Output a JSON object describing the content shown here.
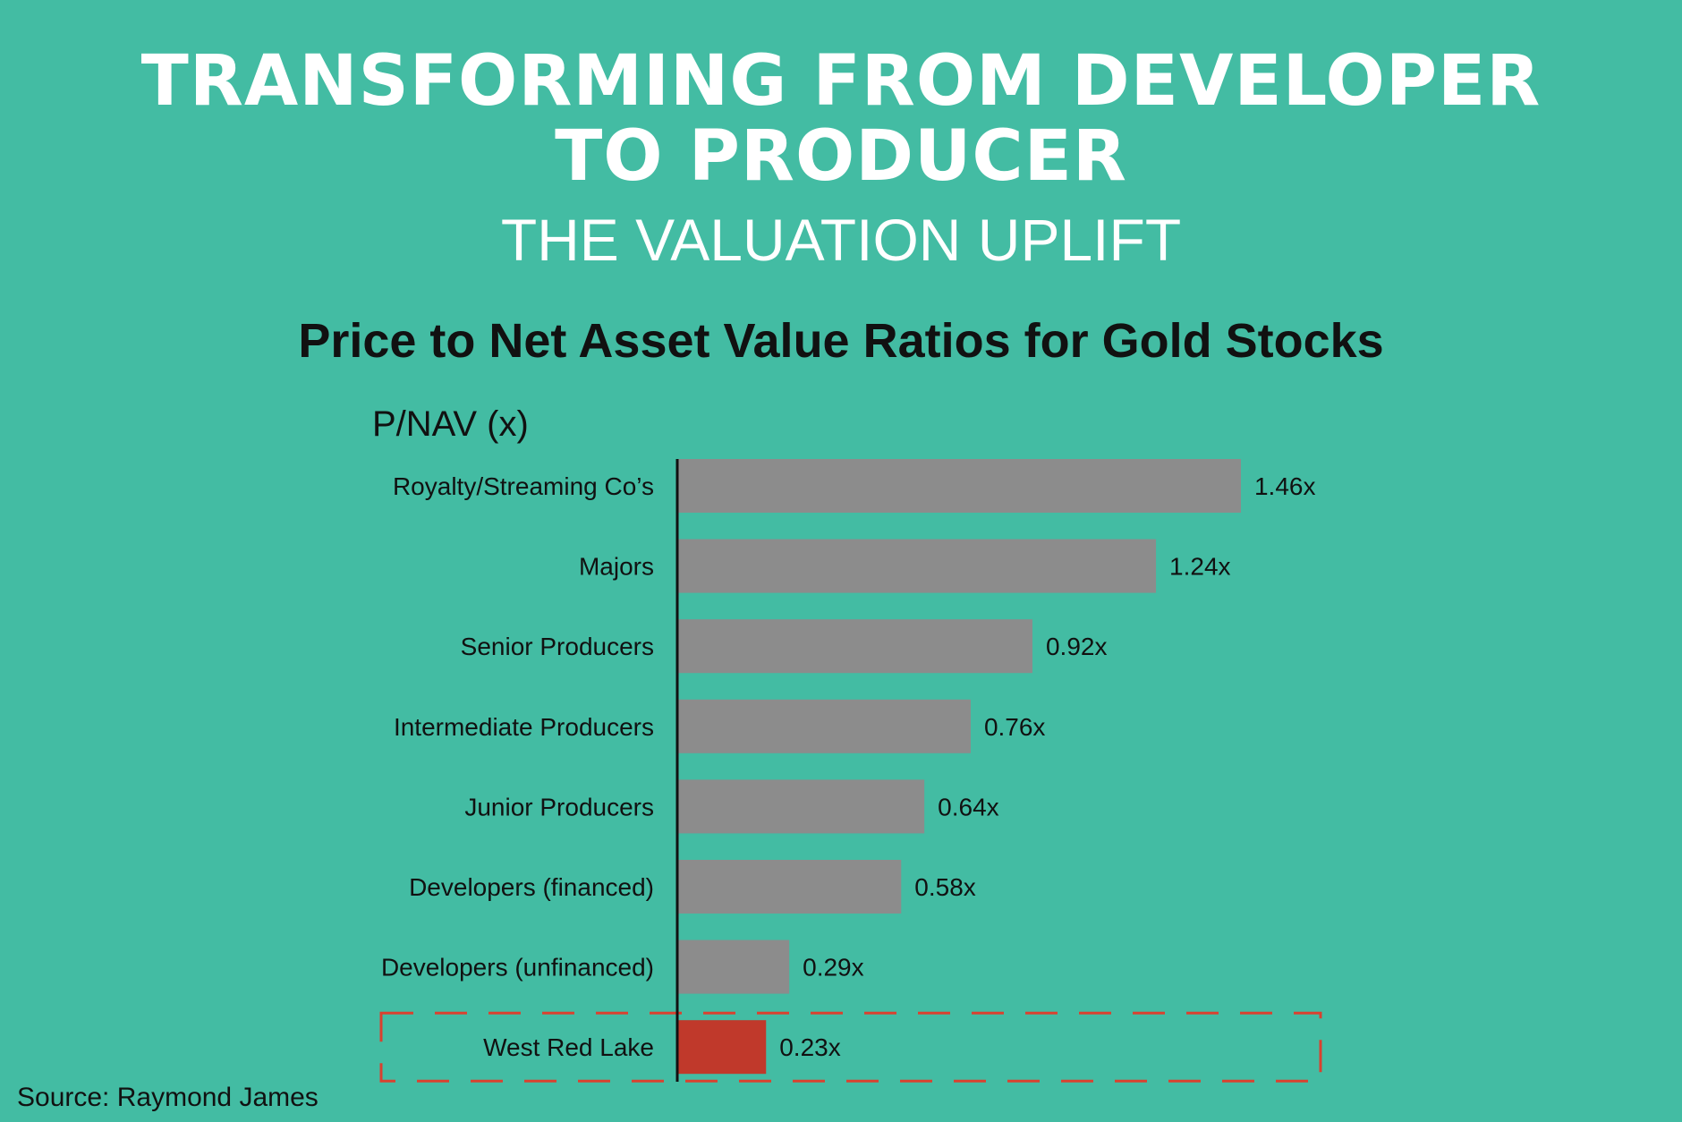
{
  "header": {
    "title_line1": "TRANSFORMING FROM DEVELOPER",
    "title_line2": "TO PRODUCER",
    "subtitle": "THE VALUATION UPLIFT"
  },
  "chart_data": {
    "type": "bar",
    "orientation": "horizontal",
    "title": "Price to Net Asset Value Ratios for Gold Stocks",
    "ylabel": "P/NAV (x)",
    "categories": [
      "Royalty/Streaming Co’s",
      "Majors",
      "Senior Producers",
      "Intermediate Producers",
      "Junior Producers",
      "Developers (financed)",
      "Developers (unfinanced)",
      "West Red Lake"
    ],
    "values": [
      1.46,
      1.24,
      0.92,
      0.76,
      0.64,
      0.58,
      0.29,
      0.23
    ],
    "data_labels": [
      "1.46x",
      "1.24x",
      "0.92x",
      "0.76x",
      "0.64x",
      "0.58x",
      "0.29x",
      "0.23x"
    ],
    "highlight": "West Red Lake",
    "grid": false,
    "colors": {
      "bar": "#8c8c8c",
      "highlight": "#c0392b",
      "highlight_box": "#d9412f",
      "background": "#43bca3"
    }
  },
  "footer": {
    "source": "Source: Raymond James"
  }
}
